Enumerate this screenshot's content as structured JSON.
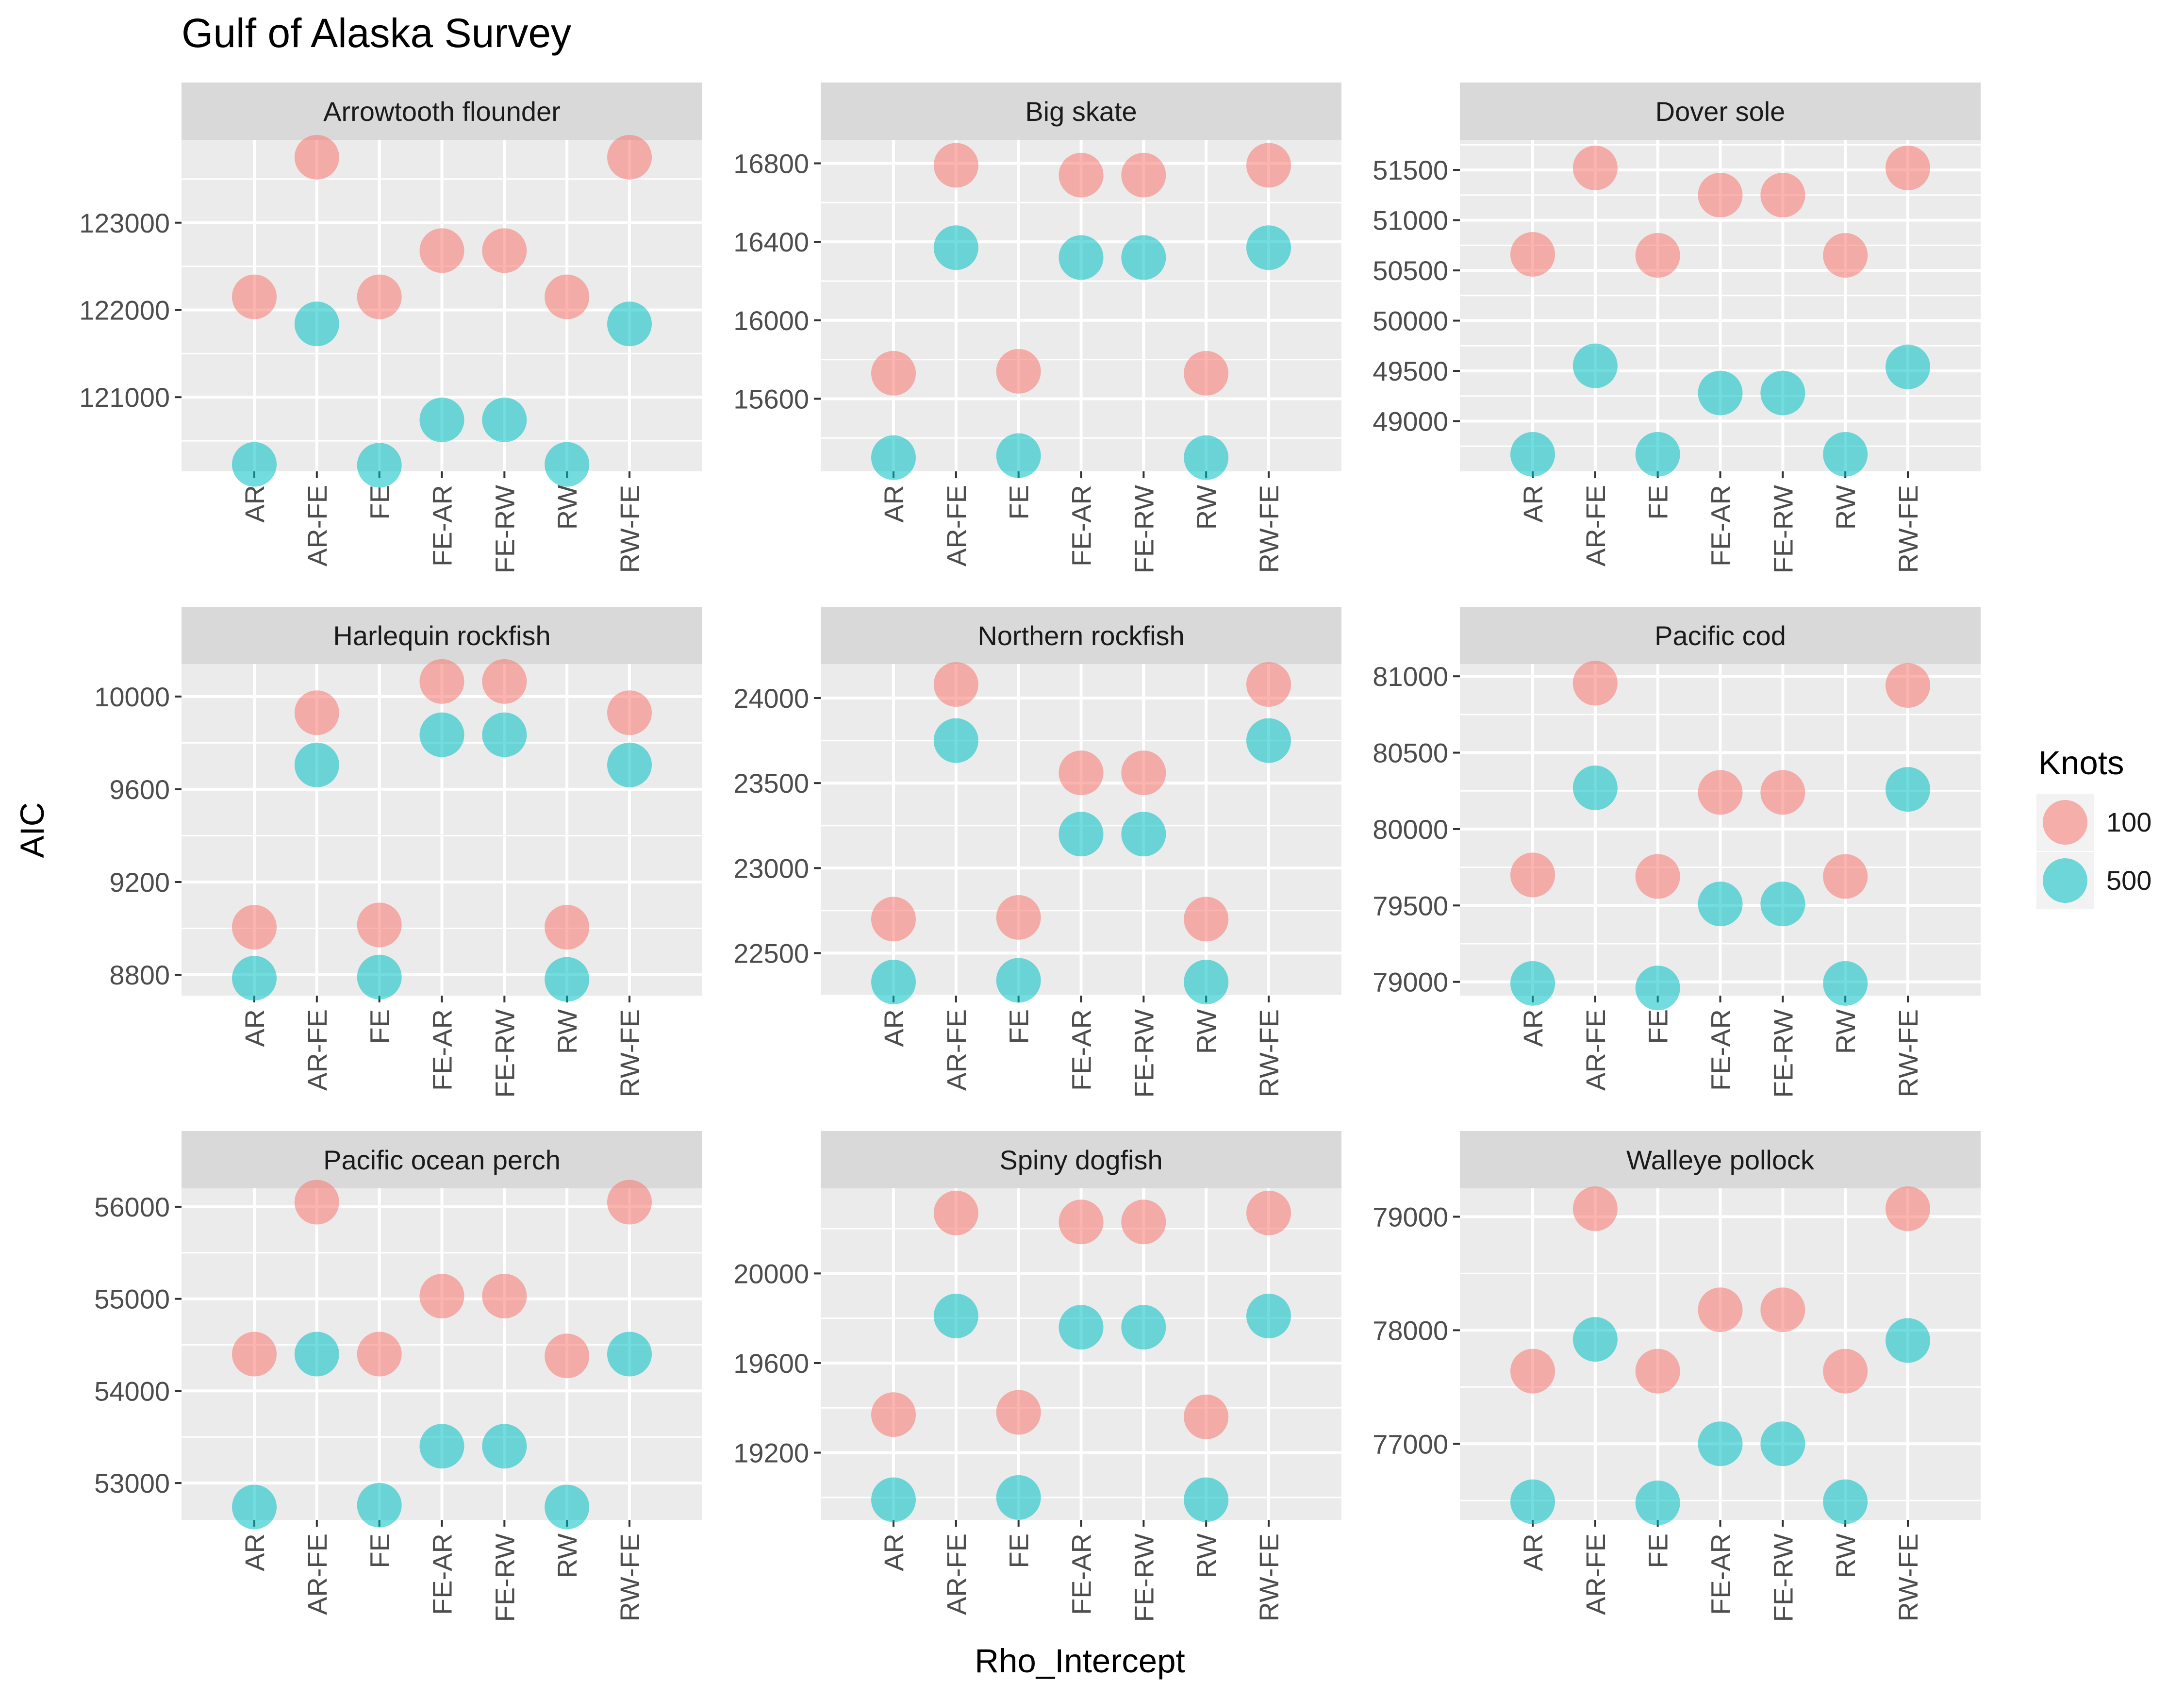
{
  "title": "Gulf of Alaska Survey",
  "xlabel": "Rho_Intercept",
  "ylabel": "AIC",
  "legend": {
    "title": "Knots",
    "placement": "right",
    "items": [
      {
        "label": "100",
        "color": "#F8766D"
      },
      {
        "label": "500",
        "color": "#00BFC4"
      }
    ]
  },
  "colors": {
    "panel_bg": "#EBEBEB",
    "strip_bg": "#D9D9D9",
    "grid": "#FFFFFF",
    "tick_text": "#4D4D4D",
    "text": "#1A1A1A"
  },
  "chart_data": {
    "type": "scatter",
    "layout": "facet_wrap 3x3, free y scales",
    "categories": [
      "AR",
      "AR-FE",
      "FE",
      "FE-AR",
      "FE-RW",
      "RW",
      "RW-FE"
    ],
    "grid": true,
    "panels": [
      {
        "name": "Arrowtooth flounder",
        "ylim": [
          120150,
          123950
        ],
        "yticks": [
          121000,
          122000,
          123000
        ],
        "ytick_labels": [
          "121000",
          "122000",
          "123000"
        ],
        "series": [
          {
            "name": "100",
            "values": [
              122150,
              123750,
              122150,
              122680,
              122680,
              122150,
              123750
            ]
          },
          {
            "name": "500",
            "values": [
              120230,
              121840,
              120220,
              120740,
              120740,
              120230,
              121840
            ]
          }
        ]
      },
      {
        "name": "Big skate",
        "ylim": [
          15230,
          16920
        ],
        "yticks": [
          15600,
          16000,
          16400,
          16800
        ],
        "ytick_labels": [
          "15600",
          "16000",
          "16400",
          "16800"
        ],
        "series": [
          {
            "name": "100",
            "values": [
              15730,
              16790,
              15740,
              16740,
              16740,
              15730,
              16790
            ]
          },
          {
            "name": "500",
            "values": [
              15300,
              16370,
              15310,
              16320,
              16320,
              15300,
              16370
            ]
          }
        ]
      },
      {
        "name": "Dover sole",
        "ylim": [
          48500,
          51800
        ],
        "yticks": [
          49000,
          49500,
          50000,
          50500,
          51000,
          51500
        ],
        "ytick_labels": [
          "49000",
          "49500",
          "50000",
          "50500",
          "51000",
          "51500"
        ],
        "series": [
          {
            "name": "100",
            "values": [
              50660,
              51520,
              50650,
              51250,
              51250,
              50650,
              51520
            ]
          },
          {
            "name": "500",
            "values": [
              48670,
              49550,
              48670,
              49280,
              49280,
              48670,
              49540
            ]
          }
        ]
      },
      {
        "name": "Harlequin rockfish",
        "ylim": [
          8710,
          10140
        ],
        "yticks": [
          8800,
          9200,
          9600,
          10000
        ],
        "ytick_labels": [
          "8800",
          "9200",
          "9600",
          "10000"
        ],
        "series": [
          {
            "name": "100",
            "values": [
              9005,
              9930,
              9015,
              10065,
              10065,
              9005,
              9930
            ]
          },
          {
            "name": "500",
            "values": [
              8785,
              9705,
              8790,
              9835,
              9835,
              8780,
              9705
            ]
          }
        ]
      },
      {
        "name": "Northern rockfish",
        "ylim": [
          22250,
          24200
        ],
        "yticks": [
          22500,
          23000,
          23500,
          24000
        ],
        "ytick_labels": [
          "22500",
          "23000",
          "23500",
          "24000"
        ],
        "series": [
          {
            "name": "100",
            "values": [
              22700,
              24080,
              22710,
              23560,
              23560,
              22700,
              24080
            ]
          },
          {
            "name": "500",
            "values": [
              22330,
              23750,
              22340,
              23200,
              23200,
              22330,
              23750
            ]
          }
        ]
      },
      {
        "name": "Pacific cod",
        "ylim": [
          78910,
          81080
        ],
        "yticks": [
          79000,
          79500,
          80000,
          80500,
          81000
        ],
        "ytick_labels": [
          "79000",
          "79500",
          "80000",
          "80500",
          "81000"
        ],
        "series": [
          {
            "name": "100",
            "values": [
              79700,
              80955,
              79690,
              80240,
              80240,
              79690,
              80940
            ]
          },
          {
            "name": "500",
            "values": [
              78990,
              80270,
              78960,
              79510,
              79510,
              78990,
              80260
            ]
          }
        ]
      },
      {
        "name": "Pacific ocean perch",
        "ylim": [
          52600,
          56200
        ],
        "yticks": [
          53000,
          54000,
          55000,
          56000
        ],
        "ytick_labels": [
          "53000",
          "54000",
          "55000",
          "56000"
        ],
        "series": [
          {
            "name": "100",
            "values": [
              54400,
              56050,
              54400,
              55030,
              55030,
              54380,
              56050
            ]
          },
          {
            "name": "500",
            "values": [
              52740,
              54400,
              52760,
              53400,
              53400,
              52740,
              54400
            ]
          }
        ]
      },
      {
        "name": "Spiny dogfish",
        "ylim": [
          18900,
          20380
        ],
        "yticks": [
          19200,
          19600,
          20000
        ],
        "ytick_labels": [
          "19200",
          "19600",
          "20000"
        ],
        "series": [
          {
            "name": "100",
            "values": [
              19370,
              20270,
              19380,
              20230,
              20230,
              19360,
              20270
            ]
          },
          {
            "name": "500",
            "values": [
              18990,
              19810,
              19000,
              19760,
              19760,
              18990,
              19810
            ]
          }
        ]
      },
      {
        "name": "Walleye pollock",
        "ylim": [
          76330,
          79250
        ],
        "yticks": [
          77000,
          78000,
          79000
        ],
        "ytick_labels": [
          "77000",
          "78000",
          "79000"
        ],
        "series": [
          {
            "name": "100",
            "values": [
              77640,
              79070,
              77640,
              78180,
              78180,
              77640,
              79070
            ]
          },
          {
            "name": "500",
            "values": [
              76490,
              77920,
              76480,
              77000,
              77000,
              76490,
              77910
            ]
          }
        ]
      }
    ]
  }
}
